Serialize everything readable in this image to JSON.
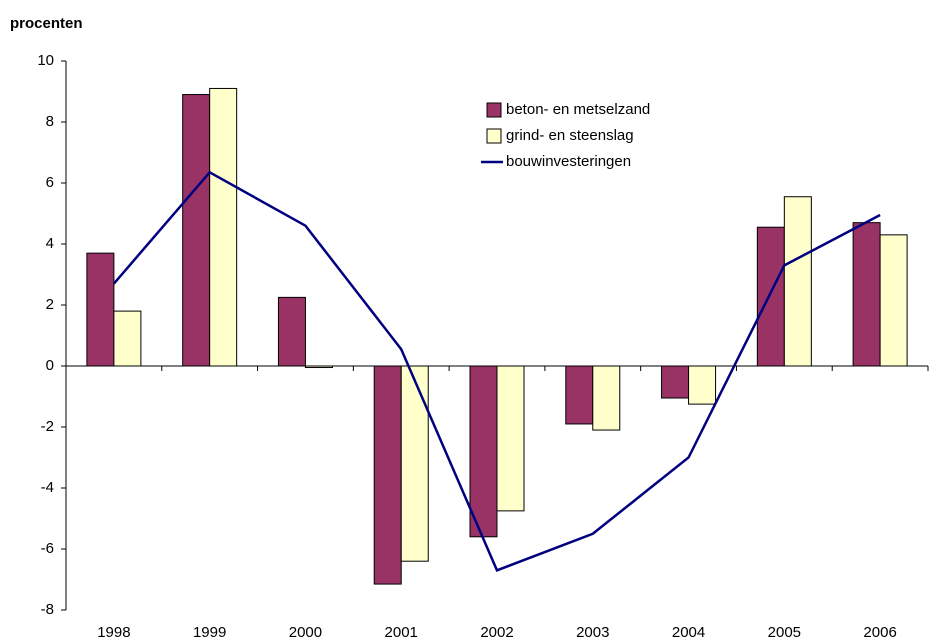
{
  "chart_data": {
    "type": "bar-line",
    "y_label": "procenten",
    "categories": [
      "1998",
      "1999",
      "2000",
      "2001",
      "2002",
      "2003",
      "2004",
      "2005",
      "2006"
    ],
    "series": [
      {
        "name": "beton- en metselzand",
        "type": "bar",
        "color": "#993366",
        "values": [
          3.7,
          8.9,
          2.25,
          -7.15,
          -5.6,
          -1.9,
          -1.05,
          4.55,
          4.7
        ]
      },
      {
        "name": "grind- en steenslag",
        "type": "bar",
        "color": "#ffffcc",
        "values": [
          1.8,
          9.1,
          -0.05,
          -6.4,
          -4.75,
          -2.1,
          -1.25,
          5.55,
          4.3
        ]
      },
      {
        "name": "bouwinvesteringen",
        "type": "line",
        "color": "#000080",
        "values": [
          2.7,
          6.35,
          4.6,
          0.55,
          -6.7,
          -5.5,
          -3.0,
          3.3,
          4.95
        ]
      }
    ],
    "ylim": [
      -8,
      10
    ],
    "yticks": [
      -8,
      -6,
      -4,
      -2,
      0,
      2,
      4,
      6,
      8,
      10
    ]
  }
}
